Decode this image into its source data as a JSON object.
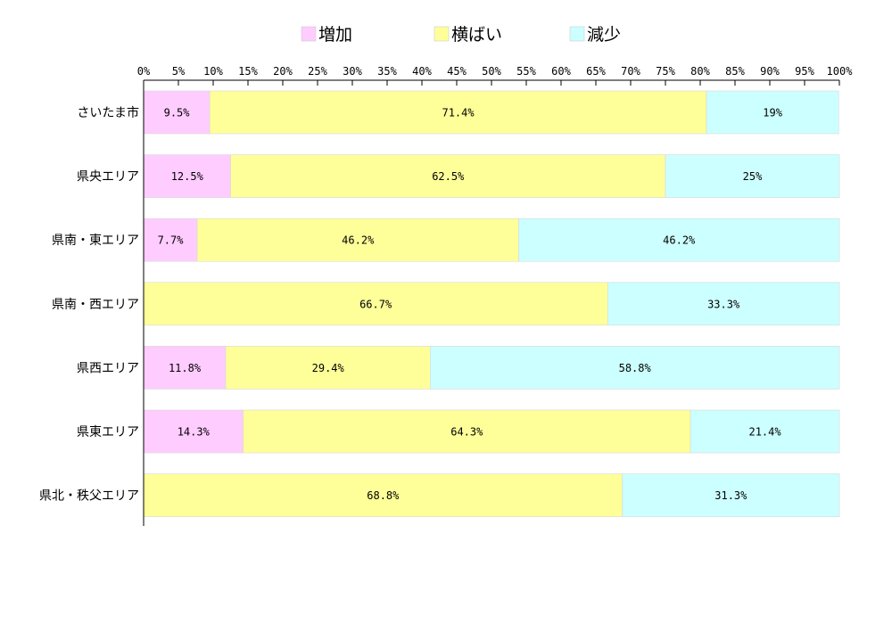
{
  "chart_data": {
    "type": "bar",
    "orientation": "horizontal",
    "stacked": true,
    "normalized": true,
    "xlim": [
      0,
      100
    ],
    "x_tick_labels": [
      "0%",
      "5%",
      "10%",
      "15%",
      "20%",
      "25%",
      "30%",
      "35%",
      "40%",
      "45%",
      "50%",
      "55%",
      "60%",
      "65%",
      "70%",
      "75%",
      "80%",
      "85%",
      "90%",
      "95%",
      "100%"
    ],
    "legend_position": "top",
    "grid": false,
    "categories": [
      "さいたま市",
      "県央エリア",
      "県南・東エリア",
      "県南・西エリア",
      "県西エリア",
      "県東エリア",
      "県北・秩父エリア"
    ],
    "series": [
      {
        "name": "増加",
        "color": "#ffccff",
        "values": [
          9.5,
          12.5,
          7.7,
          0,
          11.8,
          14.3,
          0
        ],
        "labels": [
          "9.5%",
          "12.5%",
          "7.7%",
          "",
          "11.8%",
          "14.3%",
          ""
        ]
      },
      {
        "name": "横ばい",
        "color": "#ffff99",
        "values": [
          71.4,
          62.5,
          46.2,
          66.7,
          29.4,
          64.3,
          68.8
        ],
        "labels": [
          "71.4%",
          "62.5%",
          "46.2%",
          "66.7%",
          "29.4%",
          "64.3%",
          "68.8%"
        ]
      },
      {
        "name": "減少",
        "color": "#ccffff",
        "values": [
          19,
          25,
          46.2,
          33.3,
          58.8,
          21.4,
          31.3
        ],
        "labels": [
          "19%",
          "25%",
          "46.2%",
          "33.3%",
          "58.8%",
          "21.4%",
          "31.3%"
        ]
      }
    ]
  }
}
